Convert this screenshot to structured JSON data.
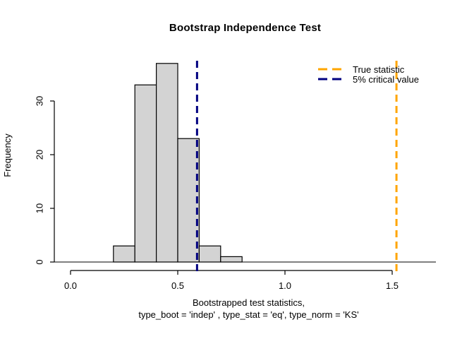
{
  "chart_data": {
    "type": "histogram",
    "title": "Bootstrap Independence Test",
    "ylabel": "Frequency",
    "xlabel_lines": [
      "Bootstrapped test statistics,",
      "type_boot = 'indep' , type_stat = 'eq', type_norm = 'KS'"
    ],
    "bins": {
      "breaks": [
        0.2,
        0.3,
        0.4,
        0.5,
        0.6,
        0.7,
        0.8
      ],
      "counts": [
        3,
        33,
        37,
        23,
        3,
        1
      ]
    },
    "axes": {
      "x_ticks": [
        0.0,
        0.5,
        1.0,
        1.5
      ],
      "x_tick_labels": [
        "0.0",
        "0.5",
        "1.0",
        "1.5"
      ],
      "y_ticks": [
        0,
        10,
        20,
        30
      ],
      "y_tick_labels": [
        "0",
        "10",
        "20",
        "30"
      ],
      "xlim": [
        0.0,
        1.7
      ],
      "ylim": [
        0,
        37
      ],
      "grid": false
    },
    "colors": {
      "bar_fill": "#D3D3D3",
      "bar_stroke": "#000000",
      "axis": "#000000",
      "true_statistic": "#FFA500",
      "critical_value": "#000080"
    },
    "vlines": [
      {
        "id": "true-statistic-line",
        "x": 1.52,
        "color": "#FFA500",
        "style": "dashed",
        "label": "True statistic"
      },
      {
        "id": "critical-value-line",
        "x": 0.59,
        "color": "#000080",
        "style": "dashed",
        "label": "5% critical value"
      }
    ],
    "legend": {
      "position": "top-right",
      "boxed": false,
      "items": [
        {
          "label": "True statistic",
          "color": "#FFA500"
        },
        {
          "label": "5% critical value",
          "color": "#000080"
        }
      ]
    }
  }
}
